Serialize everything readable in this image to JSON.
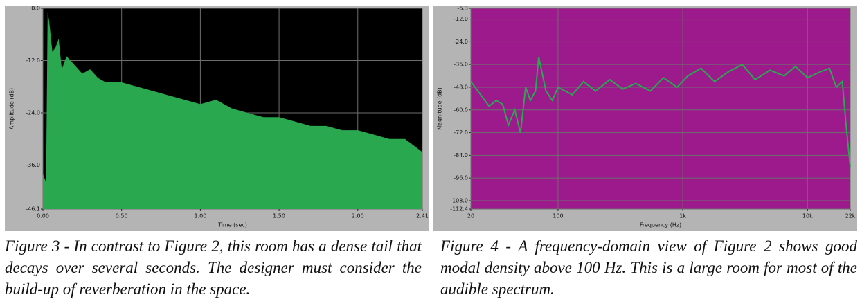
{
  "chart_data": [
    {
      "type": "area",
      "ylabel": "Amplitude (dB)",
      "xlabel": "Time (sec)",
      "color": "#2aa84f",
      "background": "#000000",
      "xlim": [
        0,
        2.41
      ],
      "ylim": [
        -46.1,
        0
      ],
      "xticks": [
        {
          "value": 0,
          "label": "0.00"
        },
        {
          "value": 0.5,
          "label": "0.50"
        },
        {
          "value": 1,
          "label": "1.00"
        },
        {
          "value": 1.5,
          "label": "1.50"
        },
        {
          "value": 2,
          "label": "2.00"
        },
        2.41
      ],
      "yticks": [
        {
          "value": 0,
          "label": "0.0"
        },
        {
          "value": -12,
          "label": "-12.0"
        },
        {
          "value": -24,
          "label": "-24.0"
        },
        {
          "value": -36,
          "label": "-36.0"
        },
        -46.1
      ],
      "grid": true,
      "x": [
        0,
        0.02,
        0.03,
        0.04,
        0.06,
        0.08,
        0.1,
        0.12,
        0.15,
        0.2,
        0.25,
        0.3,
        0.35,
        0.4,
        0.5,
        0.6,
        0.7,
        0.8,
        0.9,
        1.0,
        1.1,
        1.2,
        1.3,
        1.4,
        1.5,
        1.6,
        1.7,
        1.8,
        1.9,
        2.0,
        2.1,
        2.2,
        2.3,
        2.41
      ],
      "values": [
        -38,
        -40,
        -1,
        -3,
        -10,
        -9,
        -7,
        -14,
        -11,
        -13,
        -15,
        -14,
        -16,
        -17,
        -17,
        -18,
        -19,
        -20,
        -21,
        -22,
        -21,
        -23,
        -24,
        -25,
        -25,
        -26,
        -27,
        -27,
        -28,
        -28,
        -29,
        -30,
        -30,
        -33
      ],
      "caption": "Figure 3 - In contrast to Figure 2, this room has a dense tail that decays over several seconds. The designer must consider the build-up of reverberation in the space."
    },
    {
      "type": "line",
      "ylabel": "Magnitude (dB)",
      "xlabel": "Frequency (Hz)",
      "color": "#2aa84f",
      "background": "#9c1a8c",
      "xscale": "log",
      "xlim": [
        20,
        22000
      ],
      "ylim": [
        -112.4,
        -6.3
      ],
      "xticks": [
        20,
        {
          "value": 100,
          "label": "100"
        },
        {
          "value": 1000,
          "label": "1k"
        },
        {
          "value": 10000,
          "label": "10k"
        },
        {
          "value": 22000,
          "label": "22k"
        }
      ],
      "yticks": [
        -6.3,
        {
          "value": -12,
          "label": "-12.0"
        },
        {
          "value": -24,
          "label": "-24.0"
        },
        {
          "value": -36,
          "label": "-36.0"
        },
        {
          "value": -48,
          "label": "-48.0"
        },
        {
          "value": -60,
          "label": "-60.0"
        },
        {
          "value": -72,
          "label": "-72.0"
        },
        {
          "value": -84,
          "label": "-84.0"
        },
        {
          "value": -96,
          "label": "-96.0"
        },
        {
          "value": -108,
          "label": "-108.0"
        },
        -112.4
      ],
      "grid": true,
      "x": [
        20,
        24,
        28,
        32,
        36,
        40,
        45,
        50,
        55,
        60,
        66,
        70,
        80,
        90,
        100,
        130,
        160,
        200,
        260,
        330,
        420,
        550,
        700,
        900,
        1100,
        1400,
        1800,
        2300,
        3000,
        3800,
        5000,
        6500,
        8000,
        10000,
        12500,
        15000,
        17000,
        19000,
        20500,
        22000
      ],
      "values": [
        -45,
        -52,
        -58,
        -55,
        -57,
        -68,
        -60,
        -72,
        -48,
        -55,
        -50,
        -32,
        -50,
        -55,
        -48,
        -52,
        -45,
        -50,
        -44,
        -49,
        -46,
        -50,
        -43,
        -48,
        -42,
        -38,
        -45,
        -40,
        -36,
        -44,
        -39,
        -42,
        -37,
        -43,
        -40,
        -38,
        -48,
        -45,
        -70,
        -90
      ],
      "caption": "Figure 4 - A frequency-domain view of Figure 2 shows good modal density above 100 Hz. This is a large room for most of the audible spectrum."
    }
  ]
}
